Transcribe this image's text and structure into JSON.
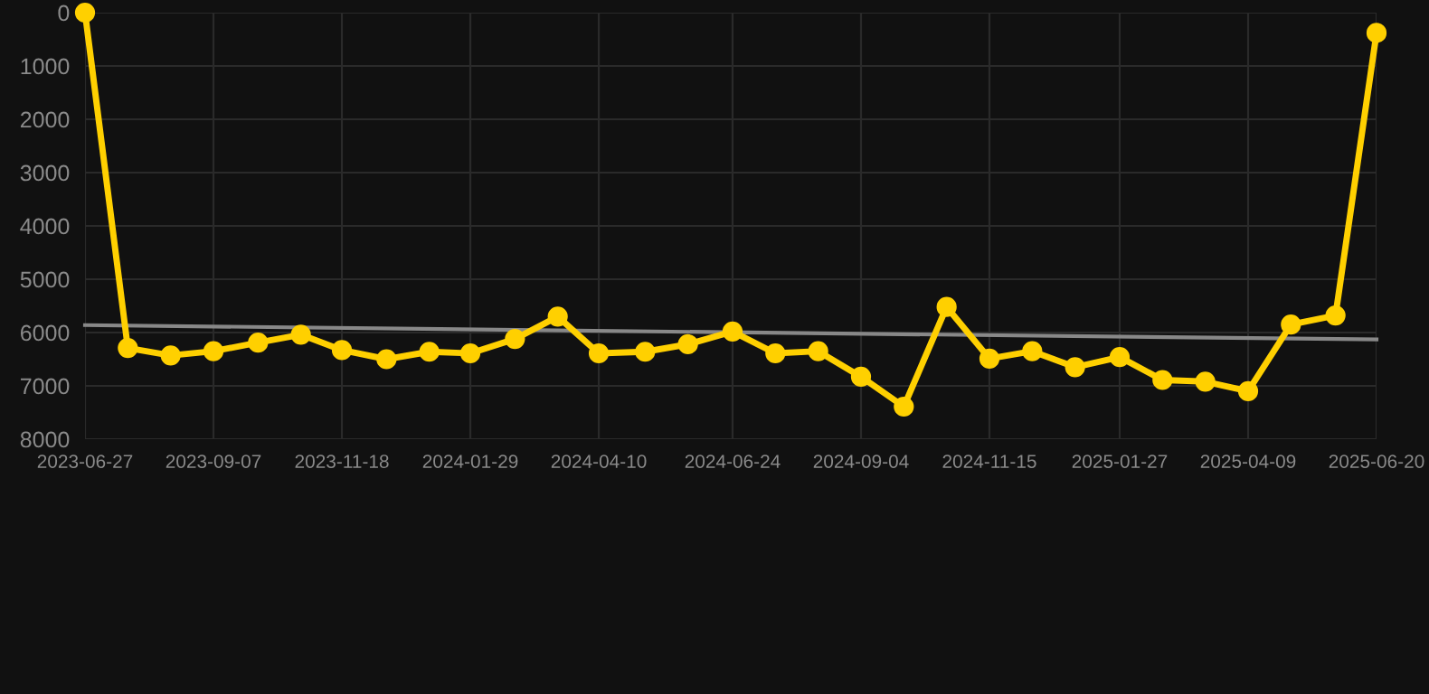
{
  "chart_data": {
    "type": "line",
    "x": [
      "2023-06-27",
      "2023-07-21",
      "2023-08-14",
      "2023-09-07",
      "2023-10-02",
      "2023-10-26",
      "2023-11-18",
      "2023-12-13",
      "2024-01-06",
      "2024-01-29",
      "2024-02-23",
      "2024-03-18",
      "2024-04-10",
      "2024-05-06",
      "2024-05-30",
      "2024-06-24",
      "2024-07-18",
      "2024-08-11",
      "2024-09-04",
      "2024-09-28",
      "2024-10-22",
      "2024-11-15",
      "2024-12-09",
      "2025-01-02",
      "2025-01-27",
      "2025-02-20",
      "2025-03-16",
      "2025-04-09",
      "2025-05-03",
      "2025-05-28",
      "2025-06-20"
    ],
    "series": [
      {
        "color": "#ffd000",
        "marker": "circle",
        "values": [
          0,
          6290,
          6430,
          6350,
          6190,
          6040,
          6330,
          6500,
          6360,
          6390,
          6120,
          5700,
          6390,
          6360,
          6220,
          5980,
          6390,
          6350,
          6830,
          7390,
          5520,
          6490,
          6350,
          6650,
          6460,
          6890,
          6920,
          7100,
          5850,
          5680,
          380
        ]
      },
      {
        "type": "line",
        "color": "#888888",
        "marker": "none",
        "x": [
          "2023-06-27",
          "2025-06-20"
        ],
        "values": [
          5860,
          6130
        ]
      }
    ],
    "xlim": [
      "2023-06-27",
      "2025-06-20"
    ],
    "xticks": [
      "2023-06-27",
      "2023-09-07",
      "2023-11-18",
      "2024-01-29",
      "2024-04-10",
      "2024-06-24",
      "2024-09-04",
      "2024-11-15",
      "2025-01-27",
      "2025-04-09",
      "2025-06-20"
    ],
    "ylim": [
      8000,
      0
    ],
    "yticks": [
      0,
      1000,
      2000,
      3000,
      4000,
      5000,
      6000,
      7000,
      8000
    ],
    "grid": true,
    "line_style": "solid"
  }
}
